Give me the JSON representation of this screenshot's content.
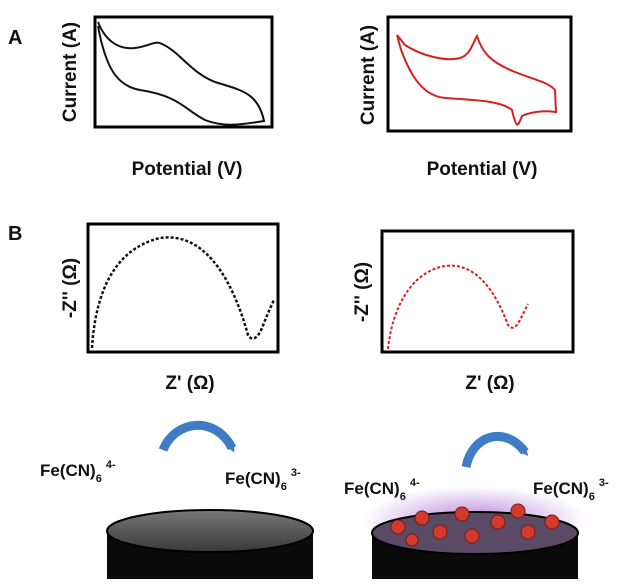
{
  "panels": [
    {
      "label": "A",
      "plots": [
        {
          "y_label": "Current (A)",
          "x_label": "Potential (V)"
        },
        {
          "y_label": "Current (A)",
          "x_label": "Potential (V)"
        }
      ]
    },
    {
      "label": "B",
      "plots": [
        {
          "y_label": "-Z'' (Ω)",
          "x_label": "Z' (Ω)"
        },
        {
          "y_label": "-Z'' (Ω)",
          "x_label": "Z' (Ω)"
        }
      ]
    }
  ],
  "reactions": [
    {
      "reactant": {
        "base": "Fe(CN)",
        "sub": "6",
        "sup": "4-"
      },
      "product": {
        "base": "Fe(CN)",
        "sub": "6",
        "sup": "3-"
      }
    },
    {
      "reactant": {
        "base": "Fe(CN)",
        "sub": "6",
        "sup": "4-"
      },
      "product": {
        "base": "Fe(CN)",
        "sub": "6",
        "sup": "3-"
      }
    }
  ]
}
